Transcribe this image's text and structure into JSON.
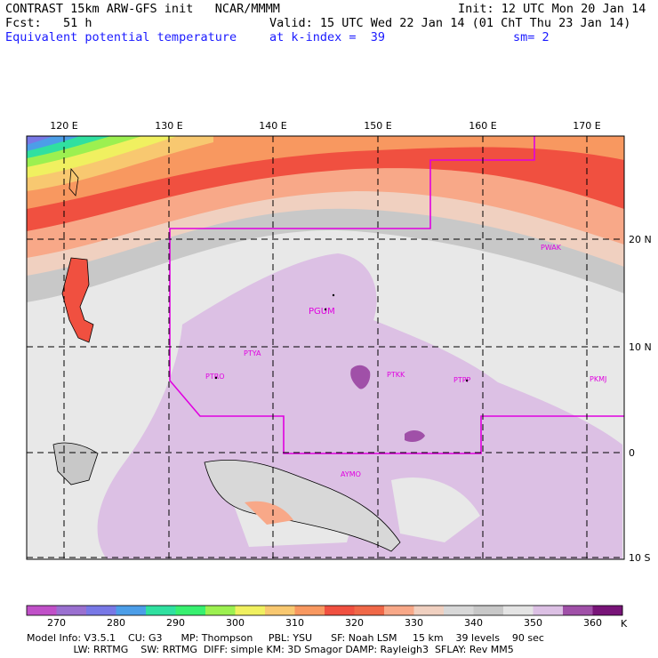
{
  "header": {
    "line1_left": "CONTRAST 15km ARW-GFS init   NCAR/MMMM",
    "line1_right": "Init: 12 UTC Mon 20 Jan 14",
    "line2_left": "Fcst:   51 h",
    "line2_right": "Valid: 15 UTC Wed 22 Jan 14 (01 ChT Thu 23 Jan 14)",
    "line3_left": "Equivalent potential temperature",
    "line3_mid": "at k-index =  39",
    "line3_right": "sm= 2"
  },
  "map": {
    "lon_labels": [
      "120 E",
      "130 E",
      "140 E",
      "150 E",
      "160 E",
      "170 E"
    ],
    "lat_labels": [
      "20 N",
      "10 N",
      "0",
      "10 S"
    ],
    "stations": [
      "PGUM",
      "PTYA",
      "PTRO",
      "PTKK",
      "PTPP",
      "PKMJ",
      "PWAK",
      "AYMO"
    ]
  },
  "colorbar": {
    "labels": [
      "270",
      "280",
      "290",
      "300",
      "310",
      "320",
      "330",
      "340",
      "350",
      "360"
    ],
    "unit": "K",
    "colors": [
      "#c050c8",
      "#9a70d0",
      "#7878e6",
      "#4c9ee8",
      "#30e0a0",
      "#38f070",
      "#9cf050",
      "#f0f060",
      "#f8c870",
      "#f89860",
      "#f05040",
      "#f06848",
      "#f8a888",
      "#f0d0c0",
      "#d8d8d8",
      "#c8c8c8",
      "#e4e4e4",
      "#dcc0e4",
      "#a050a8",
      "#781478"
    ]
  },
  "footer": {
    "line1": "Model Info: V3.5.1    CU: G3      MP: Thompson     PBL: YSU      SF: Noah LSM     15 km    39 levels    90 sec",
    "line2": "               LW: RRTMG    SW: RRTMG  DIFF: simple KM: 3D Smagor DAMP: Rayleigh3  SFLAY: Rev MM5"
  }
}
